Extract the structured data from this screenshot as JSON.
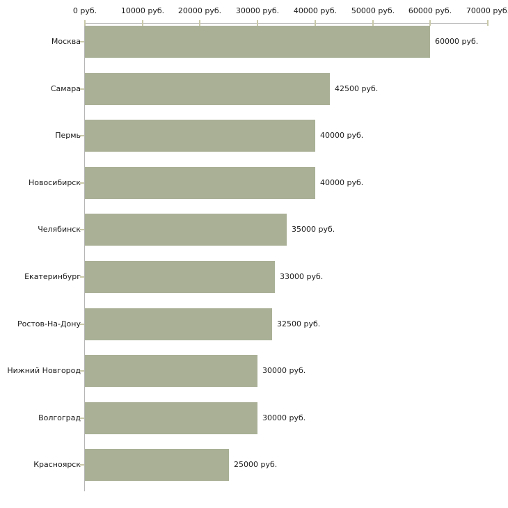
{
  "chart_data": {
    "type": "bar",
    "orientation": "horizontal",
    "title": "",
    "xlabel": "",
    "ylabel": "",
    "unit": "руб.",
    "categories": [
      "Москва",
      "Самара",
      "Пермь",
      "Новосибирск",
      "Челябинск",
      "Екатеринбург",
      "Ростов-На-Дону",
      "Нижний Новгород",
      "Волгоград",
      "Красноярск"
    ],
    "values": [
      60000,
      42500,
      40000,
      40000,
      35000,
      33000,
      32500,
      30000,
      30000,
      25000
    ],
    "value_labels": [
      "60000 руб.",
      "42500 руб.",
      "40000 руб.",
      "40000 руб.",
      "35000 руб.",
      "33000 руб.",
      "32500 руб.",
      "30000 руб.",
      "30000 руб.",
      "25000 руб."
    ],
    "xlim": [
      0,
      70000
    ],
    "x_ticks": [
      0,
      10000,
      20000,
      30000,
      40000,
      50000,
      60000,
      70000
    ],
    "x_tick_labels": [
      "0 руб.",
      "10000 руб.",
      "20000 руб.",
      "30000 руб.",
      "40000 руб.",
      "50000 руб.",
      "60000 руб.",
      "70000 руб."
    ],
    "grid": false,
    "legend": false,
    "colors": {
      "bar": "#a9b096",
      "axis_line": "#b5b5b5",
      "tick_mark": "#c9c9a9",
      "text": "#1a1a1a",
      "background": "#ffffff"
    }
  }
}
